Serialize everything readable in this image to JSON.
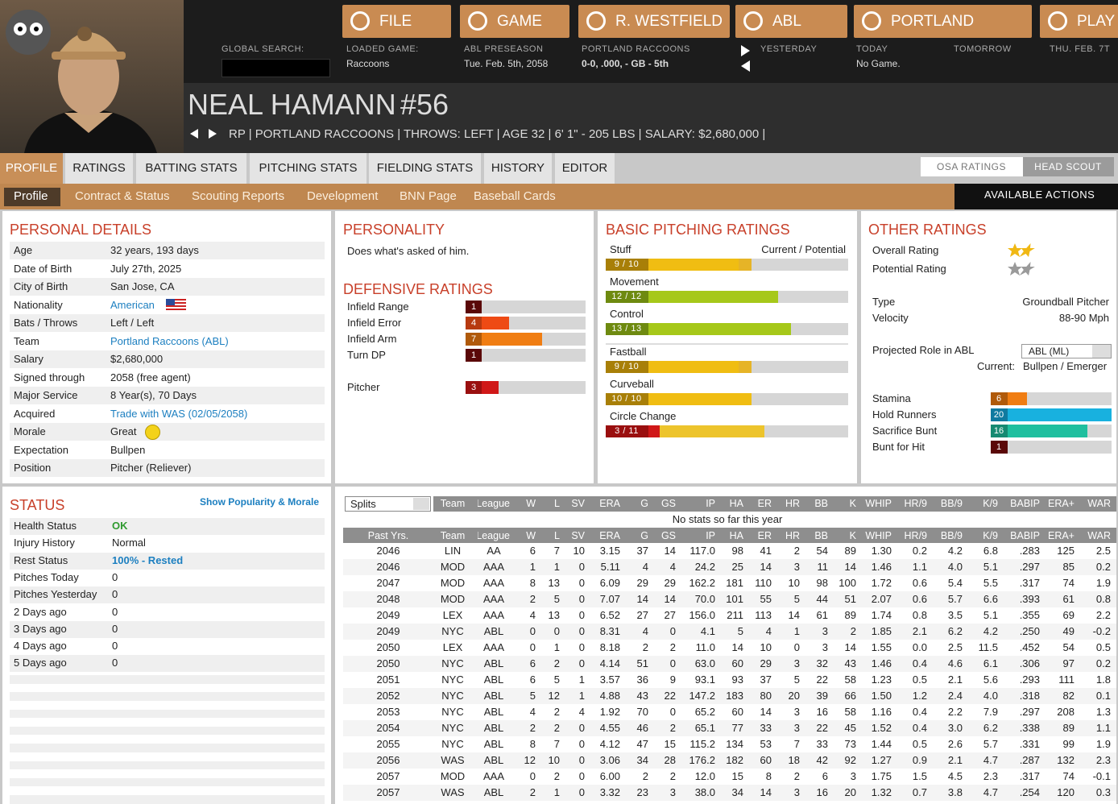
{
  "header": {
    "nav": [
      "FILE",
      "GAME",
      "R. WESTFIELD",
      "ABL",
      "PORTLAND",
      "PLAY"
    ],
    "global_search": "GLOBAL SEARCH:",
    "info": [
      {
        "label": "LOADED GAME:",
        "value": "Raccoons"
      },
      {
        "label": "ABL PRESEASON",
        "value": "Tue. Feb. 5th, 2058"
      },
      {
        "label": "PORTLAND RACCOONS",
        "value": "0-0, .000, - GB - 5th"
      }
    ],
    "yesterday": "YESTERDAY",
    "today": {
      "label": "TODAY",
      "value": "No Game."
    },
    "tomorrow": "TOMORROW",
    "next_date": "THU. FEB. 7T"
  },
  "player": {
    "name": "NEAL HAMANN",
    "number": "#56",
    "info": "RP | PORTLAND RACCOONS | THROWS: LEFT | AGE 32 | 6' 1\" - 205 LBS | SALARY: $2,680,000 |"
  },
  "tabs": [
    "PROFILE",
    "RATINGS",
    "BATTING STATS",
    "PITCHING STATS",
    "FIELDING STATS",
    "HISTORY",
    "EDITOR"
  ],
  "toggle": [
    "OSA RATINGS",
    "HEAD SCOUT"
  ],
  "subtabs": [
    "Profile",
    "Contract & Status",
    "Scouting Reports",
    "Development",
    "BNN Page",
    "Baseball Cards"
  ],
  "actions": "AVAILABLE ACTIONS",
  "personal_details": {
    "title": "PERSONAL DETAILS",
    "rows": [
      [
        "Age",
        "32 years, 193 days"
      ],
      [
        "Date of Birth",
        "July 27th, 2025"
      ],
      [
        "City of Birth",
        "San Jose, CA"
      ],
      [
        "Nationality",
        "American"
      ],
      [
        "Bats / Throws",
        "Left / Left"
      ],
      [
        "Team",
        "Portland Raccoons (ABL)"
      ],
      [
        "Salary",
        "$2,680,000"
      ],
      [
        "Signed through",
        "2058 (free agent)"
      ],
      [
        "Major Service",
        "8 Year(s), 70 Days"
      ],
      [
        "Acquired",
        "Trade with WAS (02/05/2058)"
      ],
      [
        "Morale",
        "Great"
      ],
      [
        "Expectation",
        "Bullpen"
      ],
      [
        "Position",
        "Pitcher (Reliever)"
      ]
    ]
  },
  "personality": {
    "title": "PERSONALITY",
    "text": "Does what's asked of him."
  },
  "defensive": {
    "title": "DEFENSIVE RATINGS",
    "rows": [
      {
        "name": "Infield Range",
        "value": 1
      },
      {
        "name": "Infield Error",
        "value": 4
      },
      {
        "name": "Infield Arm",
        "value": 7
      },
      {
        "name": "Turn DP",
        "value": 1
      },
      {
        "name": "Pitcher",
        "value": 3
      }
    ]
  },
  "pitching": {
    "title": "BASIC PITCHING RATINGS",
    "legend": "Current / Potential",
    "rows": [
      {
        "name": "Stuff",
        "current": 9,
        "potential": 10,
        "label": "9 / 10"
      },
      {
        "name": "Movement",
        "current": 12,
        "potential": 12,
        "label": "12 / 12"
      },
      {
        "name": "Control",
        "current": 13,
        "potential": 13,
        "label": "13 / 13"
      },
      {
        "name": "Fastball",
        "current": 9,
        "potential": 10,
        "label": "9 / 10"
      },
      {
        "name": "Curveball",
        "current": 10,
        "potential": 10,
        "label": "10 / 10"
      },
      {
        "name": "Circle Change",
        "current": 3,
        "potential": 11,
        "label": "3 / 11"
      }
    ]
  },
  "other": {
    "title": "OTHER RATINGS",
    "stars": [
      {
        "name": "Overall Rating",
        "value": 1.5
      },
      {
        "name": "Potential Rating",
        "value": 1.5
      }
    ],
    "info": [
      [
        "Type",
        "Groundball Pitcher"
      ],
      [
        "Velocity",
        "88-90 Mph"
      ]
    ],
    "role_label": "Projected Role in ABL",
    "role_select": "ABL (ML)",
    "current_label": "Current:",
    "current_value": "Bullpen / Emerger",
    "ratings": [
      {
        "name": "Stamina",
        "value": 6
      },
      {
        "name": "Hold Runners",
        "value": 20
      },
      {
        "name": "Sacrifice Bunt",
        "value": 16
      },
      {
        "name": "Bunt for Hit",
        "value": 1
      }
    ]
  },
  "status": {
    "title": "STATUS",
    "link": "Show Popularity & Morale",
    "rows": [
      [
        "Health Status",
        "OK"
      ],
      [
        "Injury History",
        "Normal"
      ],
      [
        "Rest Status",
        "100% - Rested"
      ],
      [
        "Pitches Today",
        "0"
      ],
      [
        "Pitches Yesterday",
        "0"
      ],
      [
        "2 Days ago",
        "0"
      ],
      [
        "3 Days ago",
        "0"
      ],
      [
        "4 Days ago",
        "0"
      ],
      [
        "5 Days ago",
        "0"
      ]
    ]
  },
  "stats": {
    "splits": "Splits",
    "columns": [
      "Team",
      "League",
      "W",
      "L",
      "SV",
      "ERA",
      "G",
      "GS",
      "IP",
      "HA",
      "ER",
      "HR",
      "BB",
      "K",
      "WHIP",
      "HR/9",
      "BB/9",
      "K/9",
      "BABIP",
      "ERA+",
      "WAR"
    ],
    "empty": "No stats so far this year",
    "past_label": "Past Yrs.",
    "rows": [
      [
        "2046",
        "LIN",
        "AA",
        "6",
        "7",
        "10",
        "3.15",
        "37",
        "14",
        "117.0",
        "98",
        "41",
        "2",
        "54",
        "89",
        "1.30",
        "0.2",
        "4.2",
        "6.8",
        ".283",
        "125",
        "2.5"
      ],
      [
        "2046",
        "MOD",
        "AAA",
        "1",
        "1",
        "0",
        "5.11",
        "4",
        "4",
        "24.2",
        "25",
        "14",
        "3",
        "11",
        "14",
        "1.46",
        "1.1",
        "4.0",
        "5.1",
        ".297",
        "85",
        "0.2"
      ],
      [
        "2047",
        "MOD",
        "AAA",
        "8",
        "13",
        "0",
        "6.09",
        "29",
        "29",
        "162.2",
        "181",
        "110",
        "10",
        "98",
        "100",
        "1.72",
        "0.6",
        "5.4",
        "5.5",
        ".317",
        "74",
        "1.9"
      ],
      [
        "2048",
        "MOD",
        "AAA",
        "2",
        "5",
        "0",
        "7.07",
        "14",
        "14",
        "70.0",
        "101",
        "55",
        "5",
        "44",
        "51",
        "2.07",
        "0.6",
        "5.7",
        "6.6",
        ".393",
        "61",
        "0.8"
      ],
      [
        "2049",
        "LEX",
        "AAA",
        "4",
        "13",
        "0",
        "6.52",
        "27",
        "27",
        "156.0",
        "211",
        "113",
        "14",
        "61",
        "89",
        "1.74",
        "0.8",
        "3.5",
        "5.1",
        ".355",
        "69",
        "2.2"
      ],
      [
        "2049",
        "NYC",
        "ABL",
        "0",
        "0",
        "0",
        "8.31",
        "4",
        "0",
        "4.1",
        "5",
        "4",
        "1",
        "3",
        "2",
        "1.85",
        "2.1",
        "6.2",
        "4.2",
        ".250",
        "49",
        "-0.2"
      ],
      [
        "2050",
        "LEX",
        "AAA",
        "0",
        "1",
        "0",
        "8.18",
        "2",
        "2",
        "11.0",
        "14",
        "10",
        "0",
        "3",
        "14",
        "1.55",
        "0.0",
        "2.5",
        "11.5",
        ".452",
        "54",
        "0.5"
      ],
      [
        "2050",
        "NYC",
        "ABL",
        "6",
        "2",
        "0",
        "4.14",
        "51",
        "0",
        "63.0",
        "60",
        "29",
        "3",
        "32",
        "43",
        "1.46",
        "0.4",
        "4.6",
        "6.1",
        ".306",
        "97",
        "0.2"
      ],
      [
        "2051",
        "NYC",
        "ABL",
        "6",
        "5",
        "1",
        "3.57",
        "36",
        "9",
        "93.1",
        "93",
        "37",
        "5",
        "22",
        "58",
        "1.23",
        "0.5",
        "2.1",
        "5.6",
        ".293",
        "111",
        "1.8"
      ],
      [
        "2052",
        "NYC",
        "ABL",
        "5",
        "12",
        "1",
        "4.88",
        "43",
        "22",
        "147.2",
        "183",
        "80",
        "20",
        "39",
        "66",
        "1.50",
        "1.2",
        "2.4",
        "4.0",
        ".318",
        "82",
        "0.1"
      ],
      [
        "2053",
        "NYC",
        "ABL",
        "4",
        "2",
        "4",
        "1.92",
        "70",
        "0",
        "65.2",
        "60",
        "14",
        "3",
        "16",
        "58",
        "1.16",
        "0.4",
        "2.2",
        "7.9",
        ".297",
        "208",
        "1.3"
      ],
      [
        "2054",
        "NYC",
        "ABL",
        "2",
        "2",
        "0",
        "4.55",
        "46",
        "2",
        "65.1",
        "77",
        "33",
        "3",
        "22",
        "45",
        "1.52",
        "0.4",
        "3.0",
        "6.2",
        ".338",
        "89",
        "1.1"
      ],
      [
        "2055",
        "NYC",
        "ABL",
        "8",
        "7",
        "0",
        "4.12",
        "47",
        "15",
        "115.2",
        "134",
        "53",
        "7",
        "33",
        "73",
        "1.44",
        "0.5",
        "2.6",
        "5.7",
        ".331",
        "99",
        "1.9"
      ],
      [
        "2056",
        "WAS",
        "ABL",
        "12",
        "10",
        "0",
        "3.06",
        "34",
        "28",
        "176.2",
        "182",
        "60",
        "18",
        "42",
        "92",
        "1.27",
        "0.9",
        "2.1",
        "4.7",
        ".287",
        "132",
        "2.3"
      ],
      [
        "2057",
        "MOD",
        "AAA",
        "0",
        "2",
        "0",
        "6.00",
        "2",
        "2",
        "12.0",
        "15",
        "8",
        "2",
        "6",
        "3",
        "1.75",
        "1.5",
        "4.5",
        "2.3",
        ".317",
        "74",
        "-0.1"
      ],
      [
        "2057",
        "WAS",
        "ABL",
        "2",
        "1",
        "0",
        "3.32",
        "23",
        "3",
        "38.0",
        "34",
        "14",
        "3",
        "16",
        "20",
        "1.32",
        "0.7",
        "3.8",
        "4.7",
        ".254",
        "120",
        "0.3"
      ]
    ]
  }
}
